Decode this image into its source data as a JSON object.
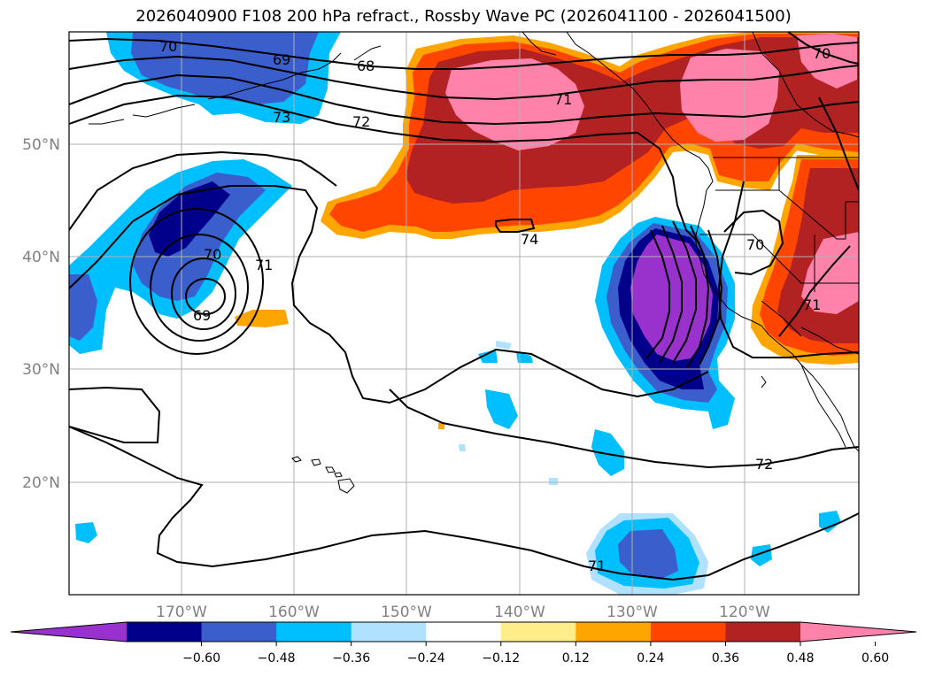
{
  "title": "2026040900 F108 200 hPa refract., Rossby Wave PC (2026041100 - 2026041500)",
  "lat_labels": [
    "50°N",
    "40°N",
    "30°N",
    "20°N"
  ],
  "lon_labels": [
    "170°W",
    "160°W",
    "150°W",
    "140°W",
    "130°W",
    "120°W"
  ],
  "contour_labels": [
    "70",
    "69",
    "68",
    "73",
    "72",
    "71",
    "70",
    "74",
    "70",
    "71",
    "69",
    "71",
    "72",
    "71"
  ],
  "colorbar": {
    "colors": [
      "#9932CC",
      "#00008B",
      "#3A5FCD",
      "#00BFFF",
      "#B0E2FF",
      "#FFFFFF",
      "#FFEC8B",
      "#FFA500",
      "#FF4500",
      "#B22222",
      "#FF82AB"
    ],
    "ticks": [
      "−0.60",
      "−0.48",
      "−0.36",
      "−0.24",
      "−0.12",
      "0.12",
      "0.24",
      "0.36",
      "0.48",
      "0.60"
    ]
  },
  "colors": {
    "land_outline": "#000000",
    "grid": "#b0b0b0",
    "contour": "#000000"
  }
}
